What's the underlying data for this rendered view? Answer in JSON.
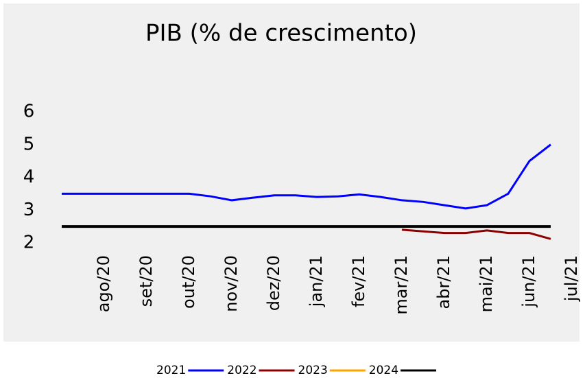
{
  "chart_data": {
    "type": "line",
    "title": "PIB (% de crescimento)",
    "categories": [
      null,
      null,
      "ago/20",
      null,
      "set/20",
      null,
      "out/20",
      null,
      "nov/20",
      null,
      "dez/20",
      null,
      "jan/21",
      null,
      "fev/21",
      null,
      "mar/21",
      null,
      "abr/21",
      null,
      "mai/21",
      null,
      "jun/21",
      null,
      "jul/21"
    ],
    "series": [
      {
        "name": "2021",
        "color": "#0000ff",
        "values": [
          3.5,
          3.5,
          3.5,
          3.5,
          3.5,
          3.5,
          3.5,
          3.42,
          3.3,
          3.38,
          3.45,
          3.45,
          3.4,
          3.42,
          3.48,
          3.4,
          3.3,
          3.25,
          3.15,
          3.05,
          3.15,
          3.5,
          4.5,
          5.0,
          null
        ]
      },
      {
        "name": "2022",
        "color": "#8b0000",
        "values": [
          null,
          null,
          null,
          null,
          null,
          null,
          null,
          null,
          null,
          null,
          null,
          null,
          null,
          null,
          null,
          null,
          2.4,
          2.35,
          2.3,
          2.3,
          2.38,
          2.3,
          2.3,
          2.12,
          null
        ]
      },
      {
        "name": "2023",
        "color": "#ffa500",
        "values": [
          null,
          null,
          null,
          null,
          null,
          null,
          null,
          null,
          null,
          null,
          null,
          null,
          null,
          null,
          null,
          null,
          null,
          null,
          null,
          null,
          null,
          null,
          null,
          null,
          null
        ]
      },
      {
        "name": "2024",
        "color": "#000000",
        "values": [
          2.5,
          2.5,
          2.5,
          2.5,
          2.5,
          2.5,
          2.5,
          2.5,
          2.5,
          2.5,
          2.5,
          2.5,
          2.5,
          2.5,
          2.5,
          2.5,
          2.5,
          2.5,
          2.5,
          2.5,
          2.5,
          2.5,
          2.5,
          2.5,
          null
        ]
      }
    ],
    "ylim": [
      2,
      6
    ],
    "yticks": [
      2,
      3,
      4,
      5,
      6
    ],
    "grid": false,
    "legend": "bottom"
  }
}
